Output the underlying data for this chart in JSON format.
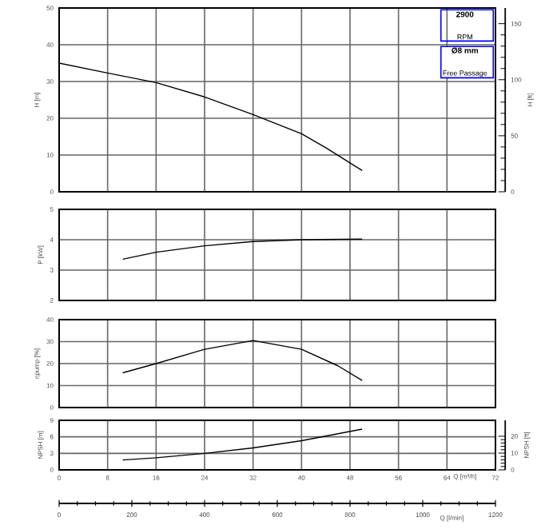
{
  "chart_data": [
    {
      "type": "line",
      "ylabel": "H [m]",
      "y2label": "H [ft]",
      "x": [
        0,
        8,
        16,
        24,
        32,
        40,
        44,
        50
      ],
      "values": [
        35,
        32.3,
        29.7,
        25.8,
        21,
        15.8,
        12,
        5.8
      ],
      "color": "#000000",
      "xlim": [
        0,
        72
      ],
      "xticks": [
        0,
        8,
        16,
        24,
        32,
        40,
        48,
        56,
        64,
        72
      ],
      "ylim": [
        0,
        50
      ],
      "yticks": [
        0,
        10,
        20,
        30,
        40,
        50
      ],
      "y2lim": [
        0,
        164
      ],
      "y2ticks": [
        0,
        50,
        100,
        150
      ],
      "grid": true,
      "tick_labels": "y",
      "annotations": [
        "2900",
        "RPM",
        "Ø8 mm",
        "Free Passage"
      ]
    },
    {
      "type": "line",
      "ylabel": "P [kW]",
      "x": [
        10.5,
        16,
        24,
        32,
        40,
        50
      ],
      "values": [
        3.36,
        3.59,
        3.8,
        3.94,
        4.0,
        4.02
      ],
      "color": "#000000",
      "xlim": [
        0,
        72
      ],
      "xticks": [
        0,
        8,
        16,
        24,
        32,
        40,
        48,
        56,
        64,
        72
      ],
      "ylim": [
        2,
        5
      ],
      "yticks": [
        2,
        3,
        4,
        5
      ],
      "grid": true,
      "tick_labels": "y"
    },
    {
      "type": "line",
      "ylabel": "ηpump [%]",
      "x": [
        10.5,
        16,
        24,
        32,
        40,
        46,
        50
      ],
      "values": [
        15.8,
        20,
        26.5,
        30.5,
        26.5,
        19,
        12.3
      ],
      "color": "#000000",
      "xlim": [
        0,
        72
      ],
      "xticks": [
        0,
        8,
        16,
        24,
        32,
        40,
        48,
        56,
        64,
        72
      ],
      "ylim": [
        0,
        40
      ],
      "yticks": [
        0,
        10,
        20,
        30,
        40
      ],
      "grid": true,
      "tick_labels": "y"
    },
    {
      "type": "line",
      "ylabel": "NPSH [m]",
      "y2label": "NPSH [ft]",
      "xlabel": "Q [m³/h]",
      "x2label": "Q [l/min]",
      "x": [
        10.5,
        16,
        24,
        32,
        40,
        50
      ],
      "values": [
        1.8,
        2.2,
        3.0,
        4.0,
        5.3,
        7.4
      ],
      "color": "#000000",
      "xlim": [
        0,
        72
      ],
      "xticks": [
        0,
        8,
        16,
        24,
        32,
        40,
        48,
        56,
        64,
        72
      ],
      "ylim": [
        0,
        9
      ],
      "yticks": [
        0,
        3,
        6,
        9
      ],
      "y2lim": [
        0,
        29.5
      ],
      "y2ticks": [
        0,
        10,
        20
      ],
      "x2lim": [
        0,
        1200
      ],
      "x2ticks": [
        0,
        200,
        400,
        600,
        800,
        1000,
        1200
      ],
      "grid": true
    }
  ]
}
